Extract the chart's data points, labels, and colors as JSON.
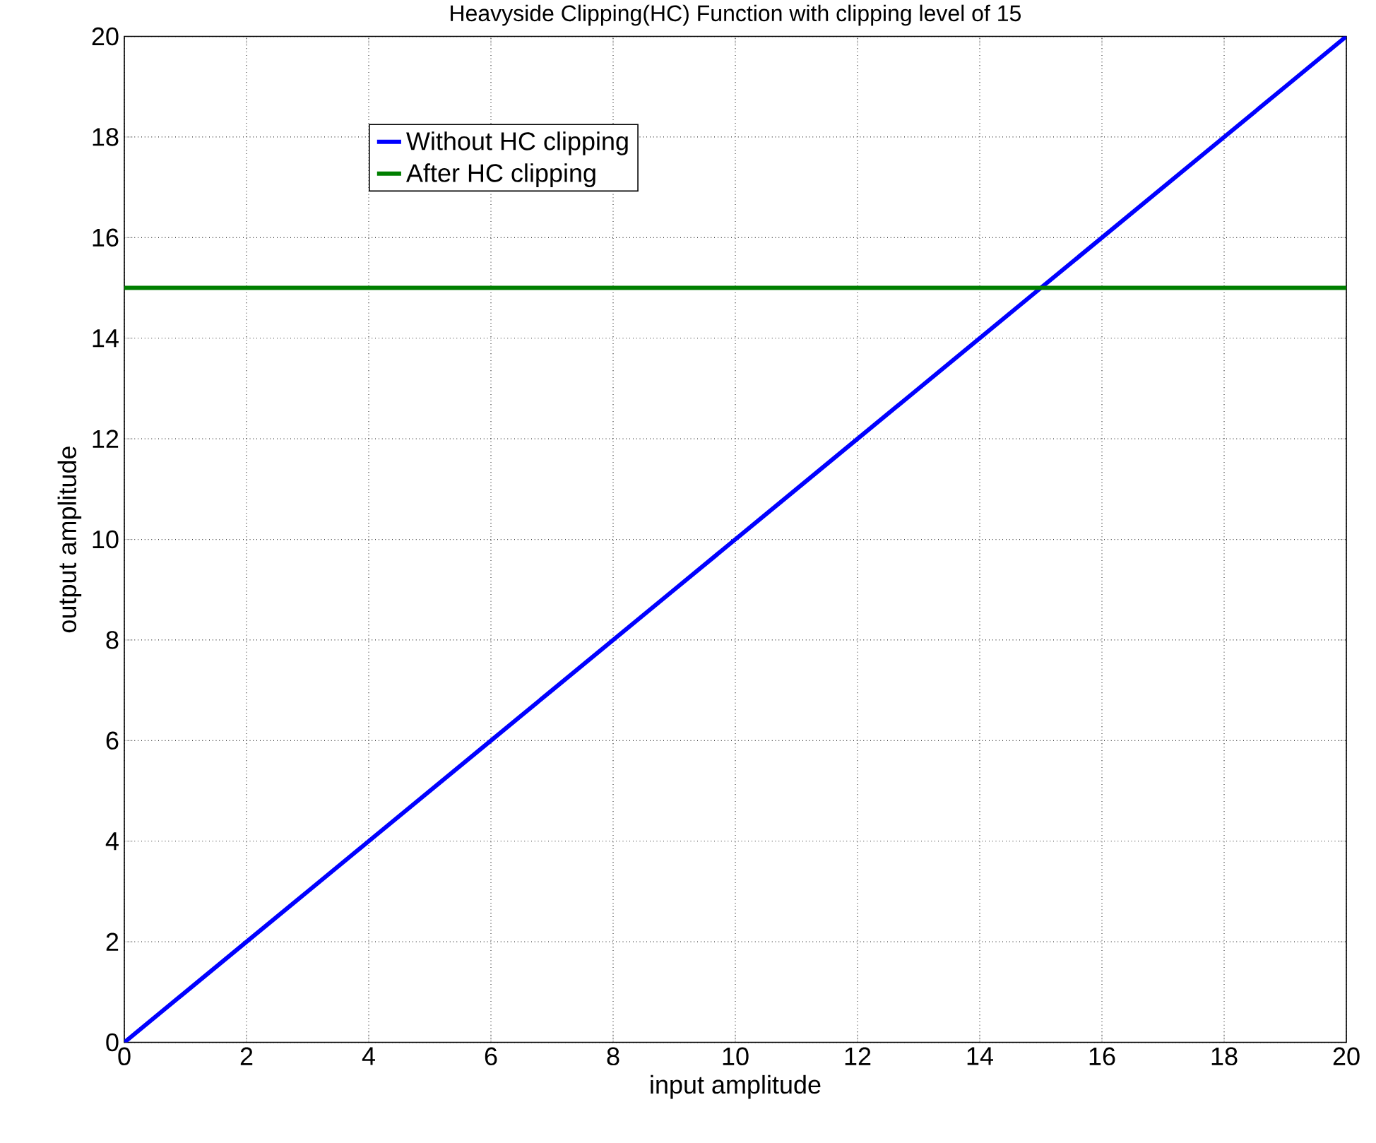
{
  "chart_data": {
    "type": "line",
    "title": "Heavyside Clipping(HC) Function with clipping level of 15",
    "xlabel": "input amplitude",
    "ylabel": "output amplitude",
    "xlim": [
      0,
      20
    ],
    "ylim": [
      0,
      20
    ],
    "xticks": [
      0,
      2,
      4,
      6,
      8,
      10,
      12,
      14,
      16,
      18,
      20
    ],
    "yticks": [
      0,
      2,
      4,
      6,
      8,
      10,
      12,
      14,
      16,
      18,
      20
    ],
    "grid": true,
    "legend": "top left",
    "marker": "none",
    "line_style": "solid",
    "series": [
      {
        "name": "Without HC clipping",
        "color": "#0000ff",
        "x": [
          0,
          1,
          2,
          3,
          4,
          5,
          6,
          7,
          8,
          9,
          10,
          11,
          12,
          13,
          14,
          15,
          16,
          17,
          18,
          19,
          20
        ],
        "values": [
          0,
          1,
          2,
          3,
          4,
          5,
          6,
          7,
          8,
          9,
          10,
          11,
          12,
          13,
          14,
          15,
          16,
          17,
          18,
          19,
          20
        ]
      },
      {
        "name": "After HC clipping",
        "color": "#007f00",
        "x": [
          0,
          20
        ],
        "values": [
          15,
          15
        ]
      }
    ]
  }
}
